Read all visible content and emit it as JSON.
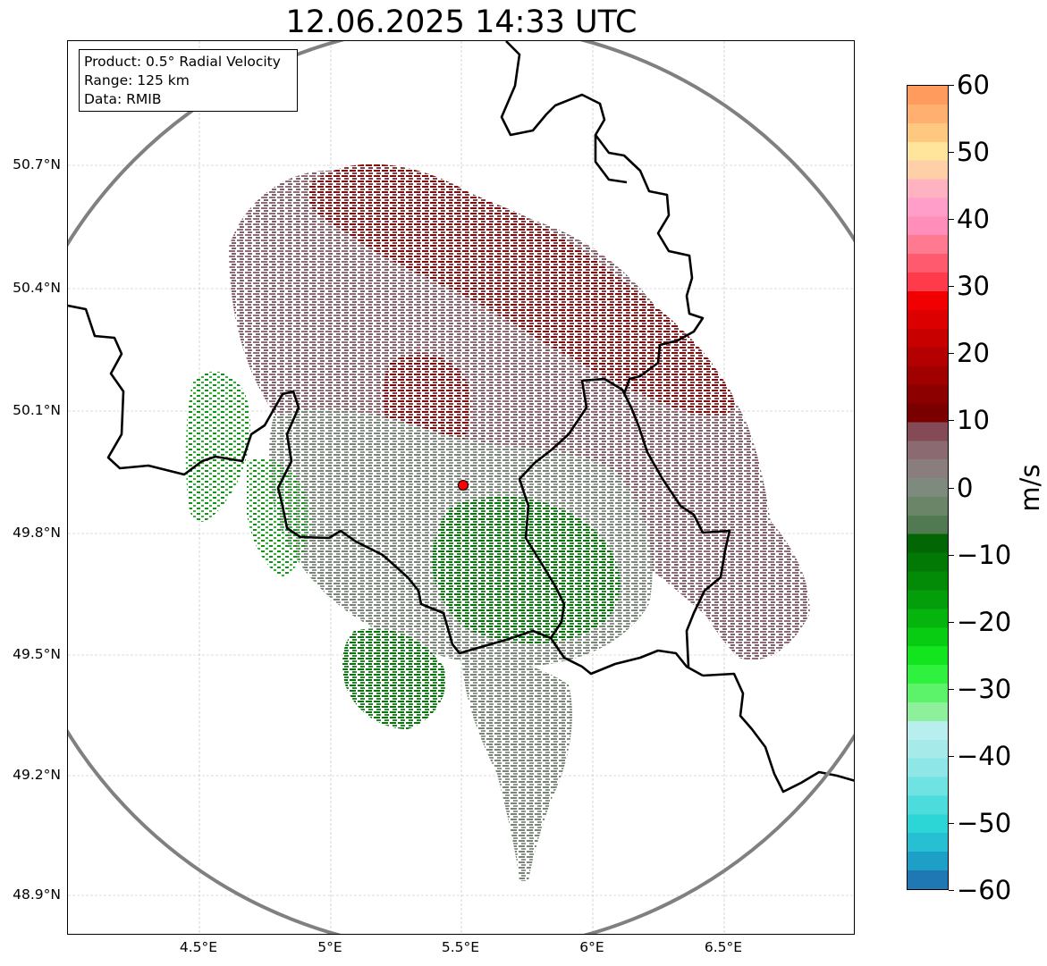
{
  "title": "12.06.2025 14:33 UTC",
  "info": {
    "product": "Product: 0.5° Radial Velocity",
    "range": "Range: 125 km",
    "data": "Data: RMIB"
  },
  "axes": {
    "lat_ticks": [
      "50.7°N",
      "50.4°N",
      "50.1°N",
      "49.8°N",
      "49.5°N",
      "49.2°N",
      "48.9°N"
    ],
    "lon_ticks": [
      "4.5°E",
      "5°E",
      "5.5°E",
      "6°E",
      "6.5°E"
    ]
  },
  "colorbar": {
    "labels": [
      "60",
      "50",
      "40",
      "30",
      "20",
      "10",
      "0",
      "−10",
      "−20",
      "−30",
      "−40",
      "−50",
      "−60"
    ],
    "unit": "m/s",
    "range": [
      -60,
      60
    ],
    "colors": [
      "#1f77b4",
      "#1e9fc8",
      "#27c0d2",
      "#2dd6d6",
      "#4ddcdc",
      "#6fe2e2",
      "#8fe6e6",
      "#a6eaea",
      "#b9eeee",
      "#8ef09a",
      "#5cf26a",
      "#2ef23e",
      "#12e41e",
      "#08cc12",
      "#06b40e",
      "#049e0a",
      "#038a07",
      "#027805",
      "#016603",
      "#527a52",
      "#6b8569",
      "#7e8a7e",
      "#8a7d7d",
      "#8c6a72",
      "#844b56",
      "#7a0000",
      "#8c0000",
      "#a00000",
      "#b40000",
      "#c80000",
      "#dc0000",
      "#f00000",
      "#ff3b4b",
      "#ff5a6e",
      "#ff7a90",
      "#ff8fba",
      "#ff9ec8",
      "#ffb2c0",
      "#ffd0a8",
      "#ffe49c",
      "#ffc880",
      "#ffb070",
      "#ff9b5c"
    ]
  },
  "radar": {
    "site": "radar-site",
    "range_ring": "range-ring"
  }
}
